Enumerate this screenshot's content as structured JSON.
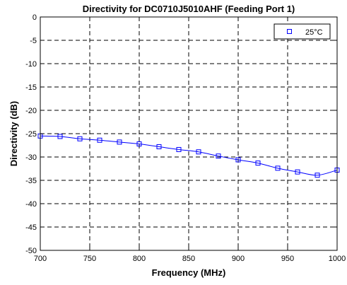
{
  "chart_data": {
    "type": "line",
    "title": "Directivity for DC0710J5010AHF (Feeding Port 1)",
    "xlabel": "Frequency (MHz)",
    "ylabel": "Directivity (dB)",
    "xlim": [
      700,
      1000
    ],
    "ylim": [
      -50,
      0
    ],
    "xticks": [
      700,
      750,
      800,
      850,
      900,
      950,
      1000
    ],
    "yticks": [
      0,
      -5,
      -10,
      -15,
      -20,
      -25,
      -30,
      -35,
      -40,
      -45,
      -50
    ],
    "grid": true,
    "grid_style": "dashed",
    "legend_position": "top-right",
    "series": [
      {
        "name": "25°C",
        "color": "#0000ff",
        "marker": "square",
        "x": [
          700,
          720,
          740,
          760,
          780,
          800,
          820,
          840,
          860,
          880,
          900,
          920,
          940,
          960,
          980,
          1000
        ],
        "y": [
          -25.5,
          -25.6,
          -26.1,
          -26.4,
          -26.8,
          -27.2,
          -27.8,
          -28.4,
          -28.9,
          -29.8,
          -30.6,
          -31.3,
          -32.4,
          -33.2,
          -33.9,
          -32.8
        ]
      }
    ]
  }
}
